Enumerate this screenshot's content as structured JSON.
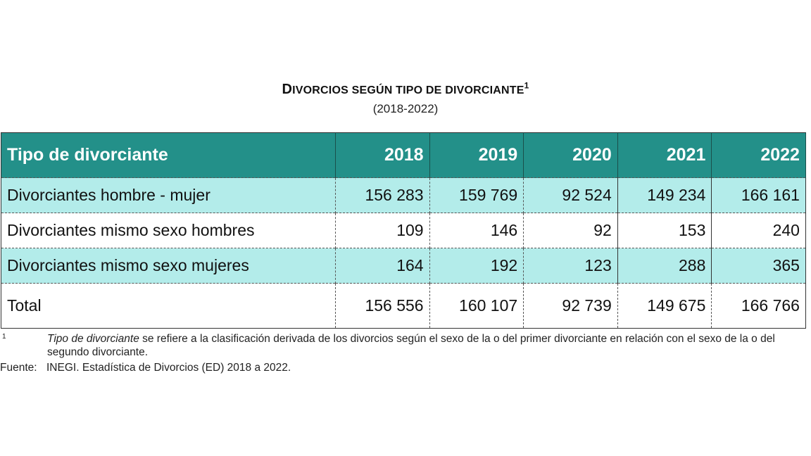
{
  "title": {
    "main_initial": "D",
    "main_rest": "IVORCIOS SEGÚN TIPO DE DIVORCIANTE",
    "footnote_marker": "1",
    "subtitle": "(2018-2022)"
  },
  "table": {
    "header": {
      "label": "Tipo de divorciante",
      "years": [
        "2018",
        "2019",
        "2020",
        "2021",
        "2022"
      ]
    },
    "rows": [
      {
        "label": "Divorciantes hombre - mujer",
        "values": [
          "156 283",
          "159 769",
          "92 524",
          "149 234",
          "166 161"
        ]
      },
      {
        "label": "Divorciantes mismo sexo hombres",
        "values": [
          "109",
          "146",
          "92",
          "153",
          "240"
        ]
      },
      {
        "label": "Divorciantes mismo sexo mujeres",
        "values": [
          "164",
          "192",
          "123",
          "288",
          "365"
        ]
      },
      {
        "label": "Total",
        "values": [
          "156 556",
          "160 107",
          "92 739",
          "149 675",
          "166 766"
        ]
      }
    ]
  },
  "colors": {
    "header_bg": "#239089",
    "alt_row_bg": "#b3ecea"
  },
  "footnote": {
    "marker": "1",
    "italic_term": "Tipo de divorciante",
    "text": " se refiere a la clasificación derivada de los divorcios según el sexo de la o del primer divorciante en relación con el sexo de la o del segundo divorciante."
  },
  "source": {
    "label": "Fuente:",
    "text": "INEGI. Estadística de Divorcios (ED) 2018 a 2022."
  },
  "chart_data": {
    "type": "table",
    "title": "Divorcios según tipo de divorciante (2018-2022)",
    "columns": [
      "Tipo de divorciante",
      "2018",
      "2019",
      "2020",
      "2021",
      "2022"
    ],
    "rows": [
      [
        "Divorciantes hombre - mujer",
        156283,
        159769,
        92524,
        149234,
        166161
      ],
      [
        "Divorciantes mismo sexo hombres",
        109,
        146,
        92,
        153,
        240
      ],
      [
        "Divorciantes mismo sexo mujeres",
        164,
        192,
        123,
        288,
        365
      ],
      [
        "Total",
        156556,
        160107,
        92739,
        149675,
        166766
      ]
    ]
  }
}
